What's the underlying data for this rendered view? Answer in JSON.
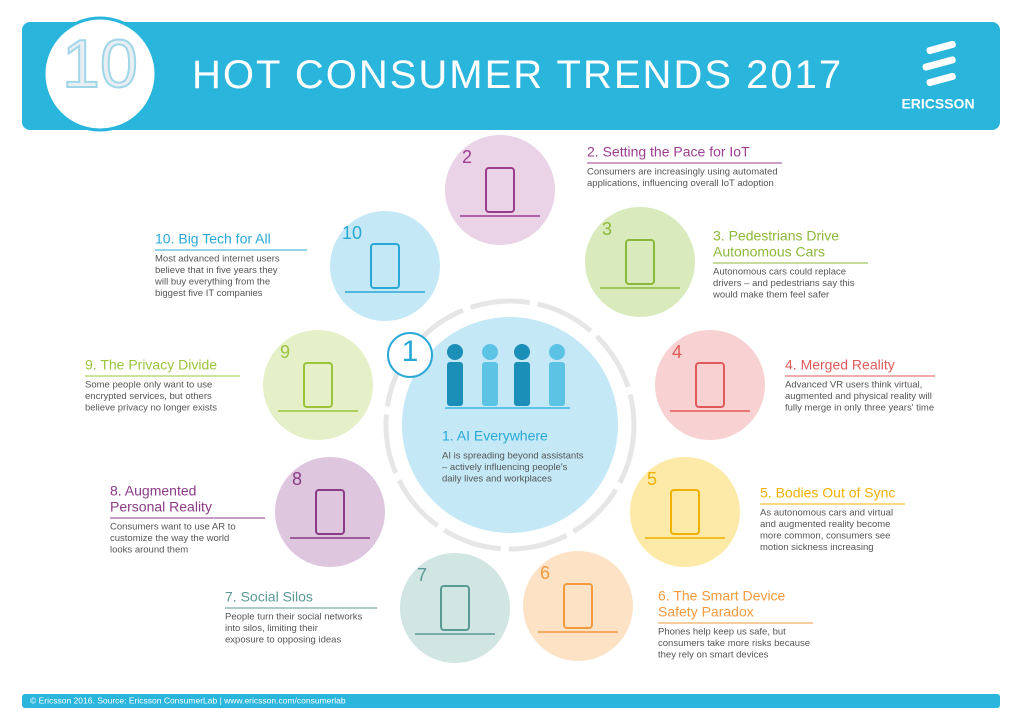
{
  "header": {
    "badge": "10",
    "title": "HOT CONSUMER TRENDS 2017",
    "brand": "ERICSSON"
  },
  "trends": [
    {
      "number": "1",
      "title": [
        "1. AI Everywhere"
      ],
      "text": [
        "AI is spreading beyond assistants",
        "– actively influencing people's",
        "daily lives and workplaces"
      ]
    },
    {
      "number": "2",
      "title": [
        "2. Setting the Pace for IoT"
      ],
      "text": [
        "Consumers are increasingly using automated",
        "applications, influencing  overall IoT adoption"
      ]
    },
    {
      "number": "3",
      "title": [
        "3. Pedestrians Drive",
        "Autonomous Cars"
      ],
      "text": [
        "Autonomous cars could replace",
        "drivers – and pedestrians say this",
        "would make them feel safer"
      ]
    },
    {
      "number": "4",
      "title": [
        "4. Merged Reality"
      ],
      "text": [
        "Advanced VR users think virtual,",
        "augmented and physical reality will",
        "fully merge in only three years' time"
      ]
    },
    {
      "number": "5",
      "title": [
        "5. Bodies Out of Sync"
      ],
      "text": [
        "As autonomous cars and virtual",
        "and augmented reality become",
        "more common, consumers see",
        "motion sickness increasing"
      ]
    },
    {
      "number": "6",
      "title": [
        "6. The Smart Device",
        "Safety Paradox"
      ],
      "text": [
        "Phones help keep us safe, but",
        "consumers take more risks because",
        "they rely on smart devices"
      ]
    },
    {
      "number": "7",
      "title": [
        "7. Social Silos"
      ],
      "text": [
        "People turn their social networks",
        "into silos, limiting their",
        "exposure to opposing ideas"
      ]
    },
    {
      "number": "8",
      "title": [
        "8. Augmented",
        "Personal Reality"
      ],
      "text": [
        "Consumers want to use AR to",
        "customize the way the world",
        "looks around them"
      ]
    },
    {
      "number": "9",
      "title": [
        "9. The Privacy Divide"
      ],
      "text": [
        "Some people only want to use",
        "encrypted services, but others",
        "believe privacy no longer exists"
      ]
    },
    {
      "number": "10",
      "title": [
        "10. Big Tech for All"
      ],
      "text": [
        "Most advanced internet users",
        "believe that in five years they",
        "will buy everything from the",
        "biggest five IT companies"
      ]
    }
  ],
  "footer": "© Ericsson 2016. Source: Ericsson ConsumerLab  |  www.ericsson.com/consumerlab"
}
